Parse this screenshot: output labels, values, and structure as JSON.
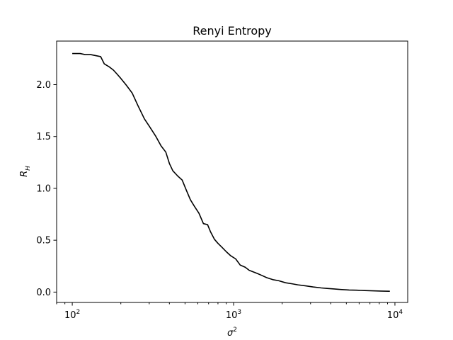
{
  "chart_data": {
    "type": "line",
    "title": "Renyi Entropy",
    "xlabel": "σ",
    "xlabel_sup": "2",
    "ylabel": "R",
    "ylabel_sub": "H",
    "xscale": "log",
    "xlim": [
      80,
      12000
    ],
    "ylim": [
      -0.1,
      2.42
    ],
    "grid": false,
    "x_ticks": [
      {
        "value": 100,
        "base": "10",
        "exp": "2"
      },
      {
        "value": 1000,
        "base": "10",
        "exp": "3"
      },
      {
        "value": 10000,
        "base": "10",
        "exp": "4"
      }
    ],
    "y_ticks": [
      {
        "value": 0.0,
        "label": "0.0"
      },
      {
        "value": 0.5,
        "label": "0.5"
      },
      {
        "value": 1.0,
        "label": "1.0"
      },
      {
        "value": 1.5,
        "label": "1.5"
      },
      {
        "value": 2.0,
        "label": "2.0"
      }
    ],
    "series": [
      {
        "color": "#000000",
        "x": [
          100,
          112,
          120,
          130,
          150,
          158,
          170,
          180,
          190,
          200,
          215,
          235,
          255,
          280,
          300,
          330,
          355,
          380,
          400,
          420,
          450,
          480,
          510,
          540,
          570,
          610,
          650,
          690,
          720,
          760,
          800,
          850,
          900,
          960,
          1030,
          1100,
          1180,
          1250,
          1300,
          1400,
          1500,
          1600,
          1750,
          1900,
          2100,
          2300,
          2500,
          2800,
          3100,
          3500,
          3800,
          4200,
          4600,
          5200,
          5800,
          6500,
          7300,
          8200,
          9300
        ],
        "y": [
          2.3,
          2.3,
          2.29,
          2.29,
          2.27,
          2.2,
          2.17,
          2.14,
          2.1,
          2.06,
          2.0,
          1.92,
          1.8,
          1.67,
          1.6,
          1.5,
          1.41,
          1.35,
          1.24,
          1.17,
          1.12,
          1.08,
          0.98,
          0.89,
          0.83,
          0.76,
          0.66,
          0.65,
          0.58,
          0.51,
          0.47,
          0.43,
          0.39,
          0.35,
          0.32,
          0.26,
          0.24,
          0.21,
          0.2,
          0.18,
          0.16,
          0.14,
          0.12,
          0.11,
          0.09,
          0.08,
          0.07,
          0.06,
          0.05,
          0.04,
          0.035,
          0.03,
          0.025,
          0.02,
          0.018,
          0.015,
          0.012,
          0.01,
          0.008
        ]
      }
    ]
  }
}
